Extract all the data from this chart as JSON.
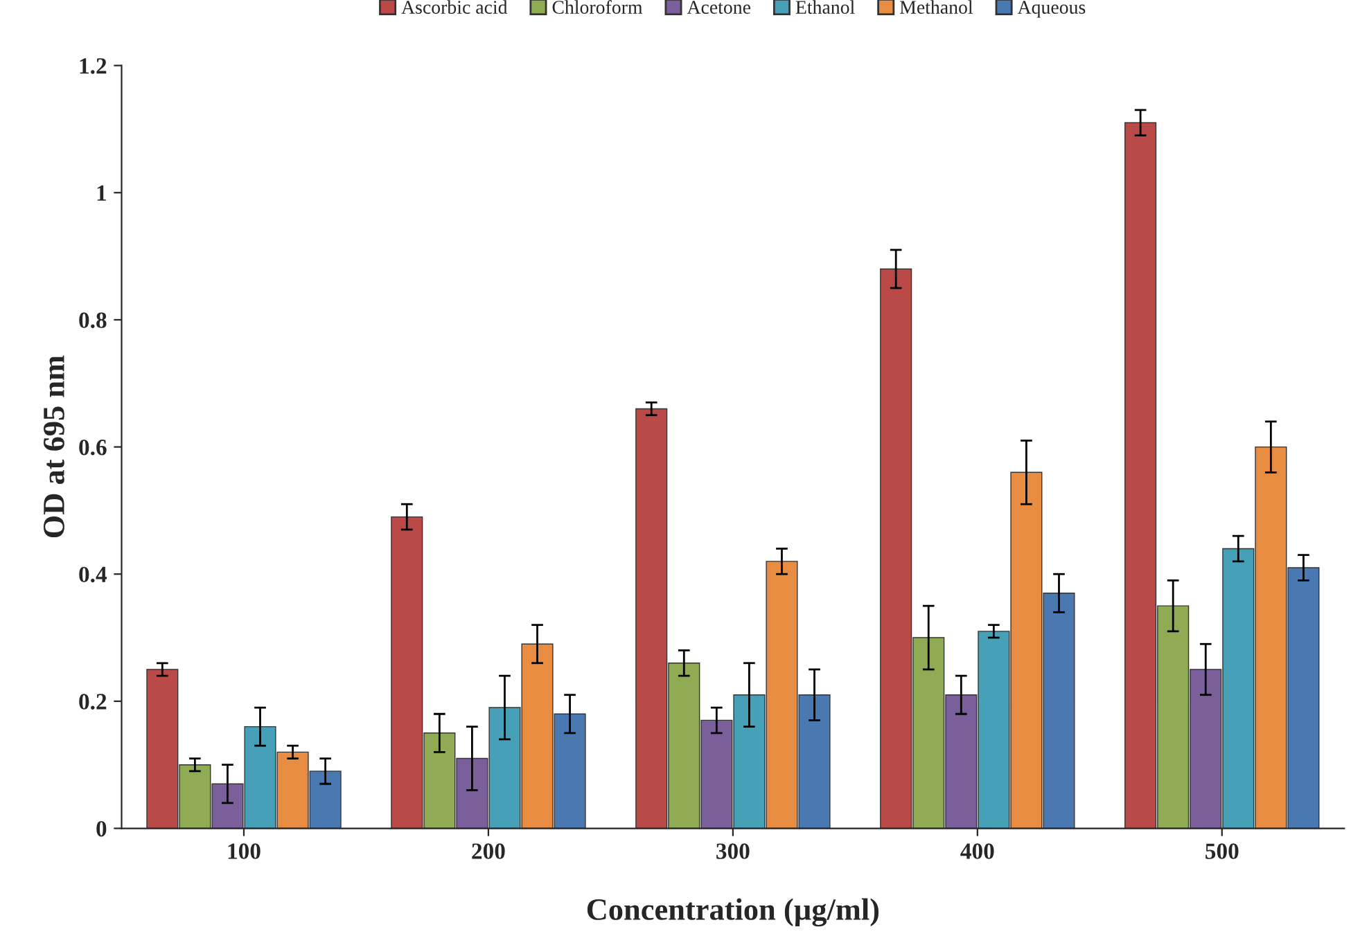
{
  "chart_data": {
    "type": "bar",
    "xlabel": "Concentration (µg/ml)",
    "ylabel": "OD at 695 nm",
    "categories": [
      "100",
      "200",
      "300",
      "400",
      "500"
    ],
    "series": [
      {
        "name": "Ascorbic acid",
        "color": "#b94a48",
        "values": [
          0.25,
          0.49,
          0.66,
          0.88,
          1.11
        ],
        "errors": [
          0.01,
          0.02,
          0.01,
          0.03,
          0.02
        ]
      },
      {
        "name": "Chloroform",
        "color": "#8fac55",
        "values": [
          0.1,
          0.15,
          0.26,
          0.3,
          0.35
        ],
        "errors": [
          0.01,
          0.03,
          0.02,
          0.05,
          0.04
        ]
      },
      {
        "name": "Acetone",
        "color": "#7a5f9a",
        "values": [
          0.07,
          0.11,
          0.17,
          0.21,
          0.25
        ],
        "errors": [
          0.03,
          0.05,
          0.02,
          0.03,
          0.04
        ]
      },
      {
        "name": "Ethanol",
        "color": "#45a0b8",
        "values": [
          0.16,
          0.19,
          0.21,
          0.31,
          0.44
        ],
        "errors": [
          0.03,
          0.05,
          0.05,
          0.01,
          0.02
        ]
      },
      {
        "name": "Methanol",
        "color": "#e88c42",
        "values": [
          0.12,
          0.29,
          0.42,
          0.56,
          0.6
        ],
        "errors": [
          0.01,
          0.03,
          0.02,
          0.05,
          0.04
        ]
      },
      {
        "name": "Aqueous",
        "color": "#4a78b0",
        "values": [
          0.09,
          0.18,
          0.21,
          0.37,
          0.41
        ],
        "errors": [
          0.02,
          0.03,
          0.04,
          0.03,
          0.02
        ]
      }
    ],
    "ylim": [
      0,
      1.2
    ],
    "yticks": [
      0,
      0.2,
      0.4,
      0.6,
      0.8,
      {
        "value": 1,
        "label": "1"
      },
      1.2
    ],
    "legend": "top",
    "grid": false
  }
}
